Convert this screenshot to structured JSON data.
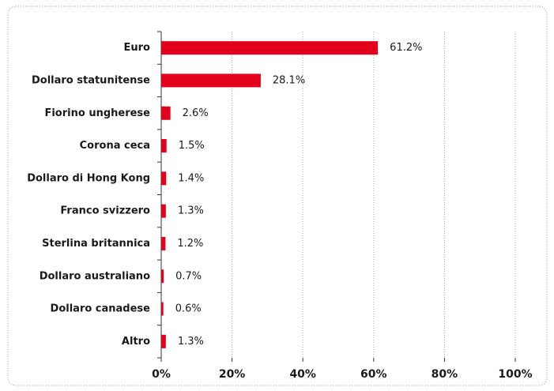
{
  "chart_data": {
    "type": "barh",
    "categories": [
      "Euro",
      "Dollaro statunitense",
      "Fiorino ungherese",
      "Corona ceca",
      "Dollaro di Hong Kong",
      "Franco svizzero",
      "Sterlina britannica",
      "Dollaro australiano",
      "Dollaro canadese",
      "Altro"
    ],
    "values": [
      61.2,
      28.1,
      2.6,
      1.5,
      1.4,
      1.3,
      1.2,
      0.7,
      0.6,
      1.3
    ],
    "value_labels": [
      "61.2%",
      "28.1%",
      "2.6%",
      "1.5%",
      "1.4%",
      "1.3%",
      "1.2%",
      "0.7%",
      "0.6%",
      "1.3%"
    ],
    "color": "#e2001a",
    "xlim": [
      0,
      100
    ],
    "xticks": [
      {
        "value": 0,
        "label": "0%"
      },
      {
        "value": 20,
        "label": "20%"
      },
      {
        "value": 40,
        "label": "40%"
      },
      {
        "value": 60,
        "label": "60%"
      },
      {
        "value": 80,
        "label": "80%"
      },
      {
        "value": 100,
        "label": "100%"
      }
    ],
    "grid": true
  }
}
